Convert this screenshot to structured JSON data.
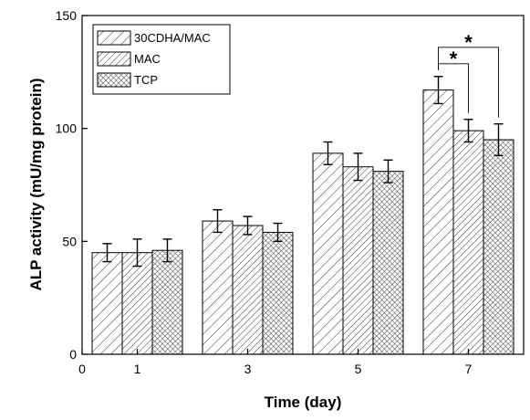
{
  "chart_data": {
    "type": "bar",
    "xlabel": "Time (day)",
    "ylabel": "ALP activity (mU/mg protein)",
    "xlim": [
      0,
      8
    ],
    "ylim": [
      0,
      150
    ],
    "x_ticks": [
      0,
      1,
      3,
      5,
      7
    ],
    "y_ticks": [
      0,
      50,
      100,
      150
    ],
    "categories": [
      "1",
      "3",
      "5",
      "7"
    ],
    "category_x": [
      1,
      3,
      5,
      7
    ],
    "legend_position": "top-left",
    "series": [
      {
        "name": "30CDHA/MAC",
        "pattern": "wide-hatch",
        "values": [
          45,
          59,
          89,
          117
        ],
        "errors": [
          4,
          5,
          5,
          6
        ]
      },
      {
        "name": "MAC",
        "pattern": "dense-hatch",
        "values": [
          45,
          57,
          83,
          99
        ],
        "errors": [
          6,
          4,
          6,
          5
        ]
      },
      {
        "name": "TCP",
        "pattern": "crosshatch",
        "values": [
          46,
          54,
          81,
          95
        ],
        "errors": [
          5,
          4,
          5,
          7
        ]
      }
    ],
    "significance": [
      {
        "category": "7",
        "from_series": "30CDHA/MAC",
        "to_series": "MAC",
        "label": "*"
      },
      {
        "category": "7",
        "from_series": "30CDHA/MAC",
        "to_series": "TCP",
        "label": "*"
      }
    ]
  }
}
